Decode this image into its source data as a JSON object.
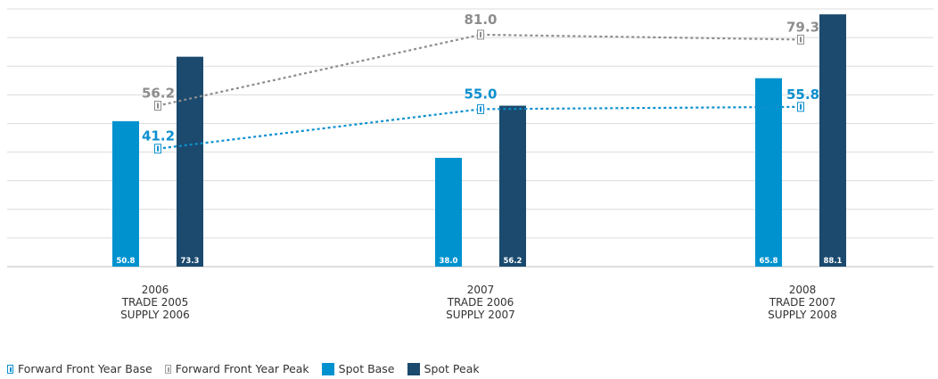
{
  "chart_data": {
    "type": "bar",
    "categories": [
      [
        "2006",
        "TRADE 2005",
        "SUPPLY 2006"
      ],
      [
        "2007",
        "TRADE 2006",
        "SUPPLY 2007"
      ],
      [
        "2008",
        "TRADE 2007",
        "SUPPLY 2008"
      ]
    ],
    "ylim": [
      0,
      90
    ],
    "grid": true,
    "legend_position": "bottom-left",
    "series": [
      {
        "name": "Spot Base",
        "kind": "bar",
        "color": "#0092cf",
        "values": [
          50.8,
          38.0,
          65.8
        ]
      },
      {
        "name": "Spot Peak",
        "kind": "bar",
        "color": "#1b4a6e",
        "values": [
          73.3,
          56.2,
          88.1
        ]
      },
      {
        "name": "Forward Front Year Base",
        "kind": "line",
        "style": "dotted",
        "color": "#0d8fcf",
        "values": [
          41.2,
          55.0,
          55.8
        ]
      },
      {
        "name": "Forward Front Year Peak",
        "kind": "line",
        "style": "dotted",
        "color": "#8d8d8d",
        "values": [
          56.2,
          81.0,
          79.3
        ]
      }
    ],
    "value_labels": {
      "Spot Base": [
        "50.8",
        "38.0",
        "65.8"
      ],
      "Spot Peak": [
        "73.3",
        "56.2",
        "88.1"
      ],
      "Forward Front Year Base": [
        "41.2",
        "55.0",
        "55.8"
      ],
      "Forward Front Year Peak": [
        "56.2",
        "81.0",
        "79.3"
      ]
    },
    "legend": [
      "Forward Front Year Base",
      "Forward Front Year Peak",
      "Spot Base",
      "Spot Peak"
    ]
  }
}
